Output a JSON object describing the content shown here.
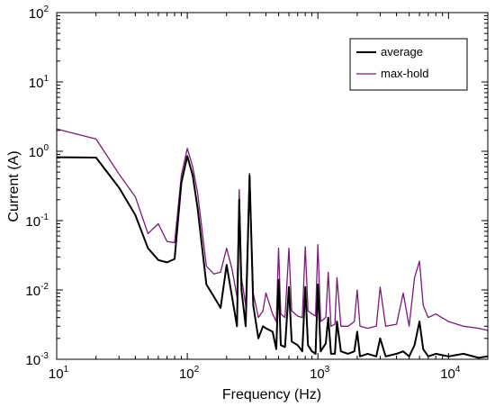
{
  "chart_data": {
    "type": "line",
    "title": "",
    "xlabel": "Frequency (Hz)",
    "ylabel": "Current (A)",
    "xscale": "log",
    "yscale": "log",
    "xlim": [
      10,
      20000
    ],
    "ylim": [
      0.001,
      100
    ],
    "grid": false,
    "legend": "top-right",
    "x_ticks": [
      {
        "base": "10",
        "exp": "1",
        "value": 10
      },
      {
        "base": "10",
        "exp": "2",
        "value": 100
      },
      {
        "base": "10",
        "exp": "3",
        "value": 1000
      },
      {
        "base": "10",
        "exp": "4",
        "value": 10000
      }
    ],
    "y_ticks": [
      {
        "base": "10",
        "exp": "-3",
        "value": 0.001
      },
      {
        "base": "10",
        "exp": "-2",
        "value": 0.01
      },
      {
        "base": "10",
        "exp": "-1",
        "value": 0.1
      },
      {
        "base": "10",
        "exp": "0",
        "value": 1
      },
      {
        "base": "10",
        "exp": "1",
        "value": 10
      },
      {
        "base": "10",
        "exp": "2",
        "value": 100
      }
    ],
    "series": [
      {
        "name": "average",
        "color": "#000000",
        "points": [
          [
            10,
            0.82
          ],
          [
            20,
            0.81
          ],
          [
            30,
            0.3
          ],
          [
            40,
            0.12
          ],
          [
            50,
            0.04
          ],
          [
            60,
            0.027
          ],
          [
            70,
            0.025
          ],
          [
            80,
            0.028
          ],
          [
            90,
            0.35
          ],
          [
            100,
            0.85
          ],
          [
            110,
            0.45
          ],
          [
            120,
            0.15
          ],
          [
            140,
            0.012
          ],
          [
            160,
            0.008
          ],
          [
            180,
            0.0055
          ],
          [
            200,
            0.023
          ],
          [
            220,
            0.008
          ],
          [
            240,
            0.003
          ],
          [
            250,
            0.2
          ],
          [
            260,
            0.01
          ],
          [
            280,
            0.003
          ],
          [
            300,
            0.45
          ],
          [
            320,
            0.006
          ],
          [
            350,
            0.002
          ],
          [
            380,
            0.003
          ],
          [
            400,
            0.0028
          ],
          [
            450,
            0.0025
          ],
          [
            480,
            0.0014
          ],
          [
            500,
            0.014
          ],
          [
            520,
            0.0016
          ],
          [
            560,
            0.0015
          ],
          [
            600,
            0.011
          ],
          [
            630,
            0.0018
          ],
          [
            700,
            0.0016
          ],
          [
            760,
            0.0013
          ],
          [
            800,
            0.011
          ],
          [
            840,
            0.0016
          ],
          [
            900,
            0.0013
          ],
          [
            960,
            0.0012
          ],
          [
            1000,
            0.012
          ],
          [
            1050,
            0.0013
          ],
          [
            1150,
            0.0017
          ],
          [
            1200,
            0.004
          ],
          [
            1260,
            0.0012
          ],
          [
            1350,
            0.0012
          ],
          [
            1400,
            0.0035
          ],
          [
            1500,
            0.0013
          ],
          [
            1700,
            0.0012
          ],
          [
            1900,
            0.0013
          ],
          [
            2000,
            0.0025
          ],
          [
            2100,
            0.0011
          ],
          [
            2400,
            0.0012
          ],
          [
            2800,
            0.0011
          ],
          [
            3000,
            0.002
          ],
          [
            3300,
            0.0011
          ],
          [
            4000,
            0.0012
          ],
          [
            4500,
            0.0013
          ],
          [
            5000,
            0.0011
          ],
          [
            5500,
            0.0016
          ],
          [
            6000,
            0.0035
          ],
          [
            6400,
            0.0014
          ],
          [
            7000,
            0.0011
          ],
          [
            8000,
            0.0012
          ],
          [
            10000,
            0.0011
          ],
          [
            13000,
            0.0012
          ],
          [
            17000,
            0.00105
          ],
          [
            20000,
            0.0011
          ]
        ]
      },
      {
        "name": "max-hold",
        "color": "#7b1a78",
        "points": [
          [
            10,
            2.1
          ],
          [
            20,
            1.5
          ],
          [
            30,
            0.47
          ],
          [
            40,
            0.22
          ],
          [
            50,
            0.065
          ],
          [
            60,
            0.09
          ],
          [
            70,
            0.05
          ],
          [
            80,
            0.048
          ],
          [
            90,
            0.45
          ],
          [
            100,
            1.1
          ],
          [
            110,
            0.6
          ],
          [
            120,
            0.25
          ],
          [
            140,
            0.022
          ],
          [
            160,
            0.017
          ],
          [
            180,
            0.018
          ],
          [
            200,
            0.04
          ],
          [
            220,
            0.02
          ],
          [
            240,
            0.008
          ],
          [
            250,
            0.28
          ],
          [
            260,
            0.015
          ],
          [
            280,
            0.006
          ],
          [
            300,
            0.48
          ],
          [
            320,
            0.009
          ],
          [
            350,
            0.004
          ],
          [
            380,
            0.005
          ],
          [
            400,
            0.009
          ],
          [
            450,
            0.0045
          ],
          [
            480,
            0.0035
          ],
          [
            500,
            0.04
          ],
          [
            520,
            0.0045
          ],
          [
            560,
            0.004
          ],
          [
            600,
            0.04
          ],
          [
            630,
            0.005
          ],
          [
            700,
            0.0042
          ],
          [
            760,
            0.004
          ],
          [
            800,
            0.042
          ],
          [
            840,
            0.005
          ],
          [
            900,
            0.0045
          ],
          [
            960,
            0.0042
          ],
          [
            1000,
            0.045
          ],
          [
            1050,
            0.0035
          ],
          [
            1150,
            0.004
          ],
          [
            1200,
            0.018
          ],
          [
            1260,
            0.003
          ],
          [
            1350,
            0.0032
          ],
          [
            1400,
            0.015
          ],
          [
            1500,
            0.003
          ],
          [
            1700,
            0.003
          ],
          [
            1900,
            0.0035
          ],
          [
            2000,
            0.01
          ],
          [
            2100,
            0.003
          ],
          [
            2400,
            0.0028
          ],
          [
            2800,
            0.003
          ],
          [
            3000,
            0.011
          ],
          [
            3300,
            0.003
          ],
          [
            4000,
            0.0032
          ],
          [
            4500,
            0.009
          ],
          [
            5000,
            0.003
          ],
          [
            5500,
            0.015
          ],
          [
            6000,
            0.026
          ],
          [
            6400,
            0.006
          ],
          [
            7000,
            0.004
          ],
          [
            8000,
            0.0045
          ],
          [
            10000,
            0.0035
          ],
          [
            13000,
            0.003
          ],
          [
            17000,
            0.0028
          ],
          [
            20000,
            0.0026
          ]
        ]
      }
    ]
  }
}
